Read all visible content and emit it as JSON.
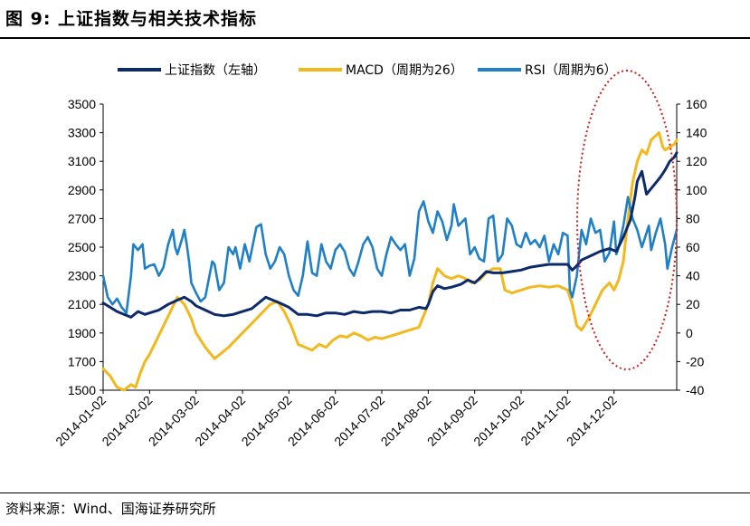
{
  "figure": {
    "title": "图 9:  上证指数与相关技术指标",
    "source": "资料来源：Wind、国海证券研究所"
  },
  "colors": {
    "sh": "#0d2a6b",
    "macd": "#f2b81d",
    "rsi": "#1f7fc7",
    "highlight": "#cc1f1f"
  },
  "chart_data": {
    "type": "line",
    "x_tick_labels": [
      "2014-01-02",
      "2014-02-02",
      "2014-03-02",
      "2014-04-02",
      "2014-05-02",
      "2014-06-02",
      "2014-07-02",
      "2014-08-02",
      "2014-09-02",
      "2014-10-02",
      "2014-11-02",
      "2014-12-02"
    ],
    "x_range": [
      0,
      12.35
    ],
    "left_axis": {
      "ylim": [
        1500,
        3500
      ],
      "ticks": [
        "1500",
        "1700",
        "1900",
        "2100",
        "2300",
        "2500",
        "2700",
        "2900",
        "3100",
        "3300",
        "3500"
      ]
    },
    "right_axis": {
      "ylim": [
        -40,
        160
      ],
      "ticks": [
        "-40",
        "-20",
        "0",
        "20",
        "40",
        "60",
        "80",
        "100",
        "120",
        "140",
        "160"
      ]
    },
    "legend": [
      "上证指数（左轴）",
      "MACD（周期为26）",
      "RSI（周期为6）"
    ],
    "series": [
      {
        "name": "上证指数（左轴）",
        "axis": "left",
        "points": [
          [
            0,
            2110
          ],
          [
            0.15,
            2080
          ],
          [
            0.3,
            2050
          ],
          [
            0.45,
            2030
          ],
          [
            0.6,
            2010
          ],
          [
            0.75,
            2050
          ],
          [
            0.9,
            2030
          ],
          [
            1.0,
            2040
          ],
          [
            1.2,
            2060
          ],
          [
            1.4,
            2100
          ],
          [
            1.6,
            2130
          ],
          [
            1.75,
            2150
          ],
          [
            1.9,
            2120
          ],
          [
            2.0,
            2090
          ],
          [
            2.2,
            2060
          ],
          [
            2.4,
            2030
          ],
          [
            2.6,
            2020
          ],
          [
            2.8,
            2030
          ],
          [
            3.0,
            2050
          ],
          [
            3.2,
            2070
          ],
          [
            3.35,
            2110
          ],
          [
            3.5,
            2150
          ],
          [
            3.65,
            2130
          ],
          [
            3.8,
            2110
          ],
          [
            4.0,
            2080
          ],
          [
            4.2,
            2030
          ],
          [
            4.4,
            2030
          ],
          [
            4.6,
            2020
          ],
          [
            4.8,
            2040
          ],
          [
            5.0,
            2040
          ],
          [
            5.2,
            2030
          ],
          [
            5.4,
            2050
          ],
          [
            5.6,
            2040
          ],
          [
            5.8,
            2050
          ],
          [
            6.0,
            2050
          ],
          [
            6.2,
            2040
          ],
          [
            6.4,
            2060
          ],
          [
            6.6,
            2060
          ],
          [
            6.8,
            2080
          ],
          [
            6.95,
            2070
          ],
          [
            7.0,
            2100
          ],
          [
            7.1,
            2190
          ],
          [
            7.2,
            2230
          ],
          [
            7.35,
            2210
          ],
          [
            7.5,
            2220
          ],
          [
            7.7,
            2240
          ],
          [
            7.85,
            2270
          ],
          [
            8.0,
            2250
          ],
          [
            8.1,
            2280
          ],
          [
            8.25,
            2330
          ],
          [
            8.4,
            2320
          ],
          [
            8.6,
            2320
          ],
          [
            8.8,
            2330
          ],
          [
            9.0,
            2340
          ],
          [
            9.2,
            2360
          ],
          [
            9.4,
            2370
          ],
          [
            9.6,
            2380
          ],
          [
            9.8,
            2380
          ],
          [
            10.0,
            2380
          ],
          [
            10.1,
            2340
          ],
          [
            10.2,
            2370
          ],
          [
            10.3,
            2410
          ],
          [
            10.5,
            2440
          ],
          [
            10.7,
            2470
          ],
          [
            10.9,
            2490
          ],
          [
            11.05,
            2470
          ],
          [
            11.2,
            2570
          ],
          [
            11.35,
            2690
          ],
          [
            11.45,
            2850
          ],
          [
            11.5,
            2960
          ],
          [
            11.6,
            3030
          ],
          [
            11.7,
            2870
          ],
          [
            11.8,
            2910
          ],
          [
            11.9,
            2950
          ],
          [
            12.0,
            2990
          ],
          [
            12.1,
            3040
          ],
          [
            12.2,
            3100
          ],
          [
            12.3,
            3130
          ],
          [
            12.35,
            3160
          ]
        ]
      },
      {
        "name": "MACD（周期为26）",
        "axis": "right",
        "points": [
          [
            0,
            -25
          ],
          [
            0.15,
            -30
          ],
          [
            0.3,
            -38
          ],
          [
            0.45,
            -40
          ],
          [
            0.6,
            -36
          ],
          [
            0.7,
            -38
          ],
          [
            0.8,
            -28
          ],
          [
            0.9,
            -20
          ],
          [
            1.0,
            -15
          ],
          [
            1.15,
            -5
          ],
          [
            1.3,
            5
          ],
          [
            1.45,
            15
          ],
          [
            1.6,
            25
          ],
          [
            1.75,
            20
          ],
          [
            1.9,
            10
          ],
          [
            2.0,
            0
          ],
          [
            2.2,
            -10
          ],
          [
            2.4,
            -18
          ],
          [
            2.55,
            -14
          ],
          [
            2.7,
            -10
          ],
          [
            2.85,
            -5
          ],
          [
            3.0,
            0
          ],
          [
            3.15,
            5
          ],
          [
            3.3,
            10
          ],
          [
            3.45,
            15
          ],
          [
            3.6,
            20
          ],
          [
            3.75,
            22
          ],
          [
            3.9,
            15
          ],
          [
            4.05,
            5
          ],
          [
            4.2,
            -8
          ],
          [
            4.35,
            -10
          ],
          [
            4.5,
            -12
          ],
          [
            4.65,
            -8
          ],
          [
            4.8,
            -10
          ],
          [
            4.95,
            -5
          ],
          [
            5.1,
            -2
          ],
          [
            5.25,
            -3
          ],
          [
            5.4,
            0
          ],
          [
            5.55,
            -2
          ],
          [
            5.7,
            -5
          ],
          [
            5.85,
            -3
          ],
          [
            6.0,
            -4
          ],
          [
            6.2,
            -2
          ],
          [
            6.4,
            0
          ],
          [
            6.6,
            2
          ],
          [
            6.8,
            4
          ],
          [
            7.0,
            20
          ],
          [
            7.1,
            35
          ],
          [
            7.2,
            45
          ],
          [
            7.35,
            40
          ],
          [
            7.5,
            38
          ],
          [
            7.65,
            40
          ],
          [
            7.8,
            38
          ],
          [
            7.95,
            35
          ],
          [
            8.1,
            37
          ],
          [
            8.25,
            42
          ],
          [
            8.4,
            45
          ],
          [
            8.55,
            45
          ],
          [
            8.65,
            30
          ],
          [
            8.8,
            28
          ],
          [
            9.0,
            30
          ],
          [
            9.2,
            32
          ],
          [
            9.4,
            33
          ],
          [
            9.6,
            32
          ],
          [
            9.8,
            33
          ],
          [
            10.0,
            30
          ],
          [
            10.1,
            20
          ],
          [
            10.2,
            5
          ],
          [
            10.3,
            2
          ],
          [
            10.45,
            10
          ],
          [
            10.6,
            20
          ],
          [
            10.75,
            30
          ],
          [
            10.9,
            35
          ],
          [
            11.0,
            30
          ],
          [
            11.1,
            37
          ],
          [
            11.2,
            50
          ],
          [
            11.3,
            80
          ],
          [
            11.4,
            105
          ],
          [
            11.5,
            120
          ],
          [
            11.6,
            128
          ],
          [
            11.7,
            125
          ],
          [
            11.8,
            135
          ],
          [
            11.9,
            138
          ],
          [
            11.97,
            140
          ],
          [
            12.05,
            130
          ],
          [
            12.1,
            128
          ],
          [
            12.2,
            130
          ],
          [
            12.3,
            132
          ],
          [
            12.35,
            135
          ]
        ]
      },
      {
        "name": "RSI（周期为6）",
        "axis": "right",
        "points": [
          [
            0,
            40
          ],
          [
            0.1,
            25
          ],
          [
            0.2,
            20
          ],
          [
            0.3,
            24
          ],
          [
            0.4,
            18
          ],
          [
            0.5,
            14
          ],
          [
            0.6,
            40
          ],
          [
            0.65,
            62
          ],
          [
            0.75,
            58
          ],
          [
            0.85,
            62
          ],
          [
            0.9,
            45
          ],
          [
            1.0,
            47
          ],
          [
            1.1,
            48
          ],
          [
            1.2,
            40
          ],
          [
            1.3,
            46
          ],
          [
            1.4,
            62
          ],
          [
            1.5,
            72
          ],
          [
            1.55,
            60
          ],
          [
            1.6,
            55
          ],
          [
            1.7,
            66
          ],
          [
            1.75,
            72
          ],
          [
            1.8,
            62
          ],
          [
            1.85,
            50
          ],
          [
            1.9,
            35
          ],
          [
            2.0,
            28
          ],
          [
            2.1,
            22
          ],
          [
            2.2,
            25
          ],
          [
            2.35,
            50
          ],
          [
            2.4,
            48
          ],
          [
            2.5,
            30
          ],
          [
            2.6,
            35
          ],
          [
            2.7,
            60
          ],
          [
            2.8,
            55
          ],
          [
            2.85,
            60
          ],
          [
            2.95,
            45
          ],
          [
            3.05,
            62
          ],
          [
            3.15,
            50
          ],
          [
            3.3,
            74
          ],
          [
            3.4,
            76
          ],
          [
            3.5,
            55
          ],
          [
            3.6,
            45
          ],
          [
            3.7,
            50
          ],
          [
            3.8,
            60
          ],
          [
            3.9,
            55
          ],
          [
            4.0,
            40
          ],
          [
            4.1,
            30
          ],
          [
            4.2,
            26
          ],
          [
            4.3,
            40
          ],
          [
            4.4,
            64
          ],
          [
            4.5,
            42
          ],
          [
            4.6,
            40
          ],
          [
            4.7,
            62
          ],
          [
            4.8,
            50
          ],
          [
            4.9,
            45
          ],
          [
            5.0,
            58
          ],
          [
            5.1,
            62
          ],
          [
            5.2,
            57
          ],
          [
            5.3,
            45
          ],
          [
            5.4,
            40
          ],
          [
            5.5,
            50
          ],
          [
            5.6,
            62
          ],
          [
            5.7,
            67
          ],
          [
            5.8,
            60
          ],
          [
            5.9,
            45
          ],
          [
            6.0,
            40
          ],
          [
            6.1,
            55
          ],
          [
            6.2,
            67
          ],
          [
            6.3,
            62
          ],
          [
            6.4,
            58
          ],
          [
            6.5,
            62
          ],
          [
            6.6,
            40
          ],
          [
            6.7,
            52
          ],
          [
            6.8,
            85
          ],
          [
            6.9,
            92
          ],
          [
            7.0,
            78
          ],
          [
            7.1,
            70
          ],
          [
            7.2,
            85
          ],
          [
            7.3,
            78
          ],
          [
            7.4,
            65
          ],
          [
            7.5,
            75
          ],
          [
            7.55,
            90
          ],
          [
            7.65,
            75
          ],
          [
            7.8,
            80
          ],
          [
            7.9,
            55
          ],
          [
            8.0,
            60
          ],
          [
            8.1,
            52
          ],
          [
            8.2,
            50
          ],
          [
            8.3,
            80
          ],
          [
            8.4,
            82
          ],
          [
            8.5,
            50
          ],
          [
            8.6,
            55
          ],
          [
            8.7,
            80
          ],
          [
            8.8,
            75
          ],
          [
            8.9,
            62
          ],
          [
            9.0,
            60
          ],
          [
            9.1,
            70
          ],
          [
            9.2,
            62
          ],
          [
            9.3,
            65
          ],
          [
            9.4,
            60
          ],
          [
            9.5,
            68
          ],
          [
            9.6,
            50
          ],
          [
            9.7,
            62
          ],
          [
            9.8,
            55
          ],
          [
            9.9,
            70
          ],
          [
            10.0,
            68
          ],
          [
            10.05,
            30
          ],
          [
            10.1,
            25
          ],
          [
            10.2,
            40
          ],
          [
            10.3,
            72
          ],
          [
            10.4,
            62
          ],
          [
            10.5,
            80
          ],
          [
            10.6,
            70
          ],
          [
            10.7,
            72
          ],
          [
            10.8,
            50
          ],
          [
            10.9,
            56
          ],
          [
            11.0,
            78
          ],
          [
            11.05,
            55
          ],
          [
            11.1,
            60
          ],
          [
            11.2,
            75
          ],
          [
            11.3,
            95
          ],
          [
            11.4,
            80
          ],
          [
            11.5,
            72
          ],
          [
            11.6,
            60
          ],
          [
            11.65,
            65
          ],
          [
            11.75,
            75
          ],
          [
            11.8,
            58
          ],
          [
            11.9,
            70
          ],
          [
            12.0,
            80
          ],
          [
            12.1,
            62
          ],
          [
            12.15,
            45
          ],
          [
            12.25,
            60
          ],
          [
            12.35,
            72
          ]
        ]
      }
    ],
    "annotation": "dotted ellipse highlighting 2014-11 to 2014-12 rally"
  }
}
